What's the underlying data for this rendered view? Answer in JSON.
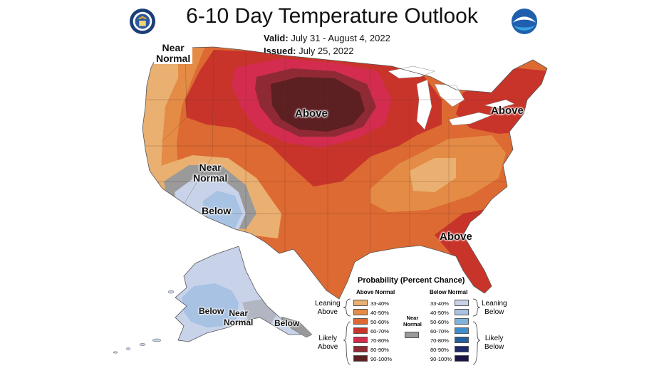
{
  "title": "6-10 Day Temperature Outlook",
  "valid_label": "Valid:",
  "valid_value": "July 31 - August 4, 2022",
  "issued_label": "Issued:",
  "issued_value": "July 25, 2022",
  "logos": {
    "left": "doc-seal-icon",
    "right": "noaa-logo-icon"
  },
  "map_labels": {
    "near_normal_nw": "Near\nNormal",
    "above_central": "Above",
    "above_ne": "Above",
    "near_normal_sw": "Near\nNormal",
    "below_sw": "Below",
    "above_se": "Above",
    "below_ak": "Below",
    "near_normal_ak": "Near\nNormal",
    "below_ak_se": "Below"
  },
  "legend": {
    "title": "Probability (Percent Chance)",
    "above_header": "Above Normal",
    "below_header": "Below Normal",
    "near_normal": "Near\nNormal",
    "leaning_above": "Leaning\nAbove",
    "likely_above": "Likely\nAbove",
    "leaning_below": "Leaning\nBelow",
    "likely_below": "Likely\nBelow",
    "above_rows": [
      {
        "range": "33-40%",
        "color": "#E9B071"
      },
      {
        "range": "40-50%",
        "color": "#E48C46"
      },
      {
        "range": "50-60%",
        "color": "#DD6A32"
      },
      {
        "range": "60-70%",
        "color": "#C8342A"
      },
      {
        "range": "70-80%",
        "color": "#D32C4E"
      },
      {
        "range": "80-90%",
        "color": "#8F2A34"
      },
      {
        "range": "90-100%",
        "color": "#5C1F22"
      }
    ],
    "below_rows": [
      {
        "range": "33-40%",
        "color": "#C8D3EA"
      },
      {
        "range": "40-50%",
        "color": "#A7C2E3"
      },
      {
        "range": "50-60%",
        "color": "#7FB2DE"
      },
      {
        "range": "60-70%",
        "color": "#3C8ECF"
      },
      {
        "range": "70-80%",
        "color": "#23609F"
      },
      {
        "range": "80-90%",
        "color": "#1E2A6B"
      },
      {
        "range": "90-100%",
        "color": "#1A1646"
      }
    ],
    "near_normal_color": "#9A9A9A"
  }
}
